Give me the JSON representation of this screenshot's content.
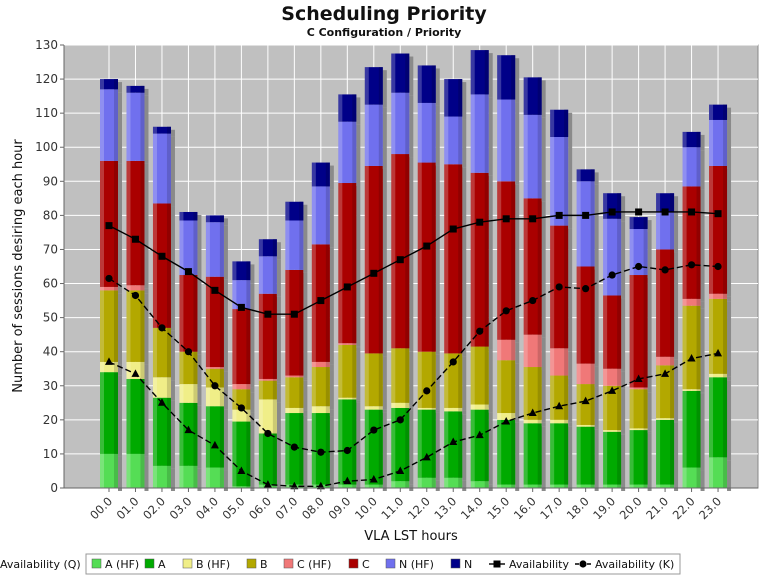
{
  "colors": {
    "plot_bg": "#c0c0c0",
    "grid": "#ffffff",
    "series_colors": {
      "A (HF)": "#55dd55",
      "A": "#00aa00",
      "B (HF)": "#f0ee88",
      "B": "#b3a800",
      "C (HF)": "#f07878",
      "C": "#aa0000",
      "N (HF)": "#7070ee",
      "N": "#000088"
    },
    "line": "#000000"
  },
  "chart_data": {
    "type": "bar",
    "stacked": true,
    "title": "Scheduling Priority",
    "subtitle": "C Configuration /  Priority",
    "xlabel": "VLA LST hours",
    "ylabel": "Number of sessions desiring each hour",
    "ylim": [
      0,
      130
    ],
    "yticks": [
      0,
      10,
      20,
      30,
      40,
      50,
      60,
      70,
      80,
      90,
      100,
      110,
      120,
      130
    ],
    "grid": true,
    "legend_position": "bottom",
    "categories": [
      "00.0",
      "01.0",
      "02.0",
      "03.0",
      "04.0",
      "05.0",
      "06.0",
      "07.0",
      "08.0",
      "09.0",
      "10.0",
      "11.0",
      "12.0",
      "13.0",
      "14.0",
      "15.0",
      "16.0",
      "17.0",
      "18.0",
      "19.0",
      "20.0",
      "21.0",
      "22.0",
      "23.0"
    ],
    "series": [
      {
        "name": "A (HF)",
        "kind": "bar",
        "values": [
          10,
          10,
          6.5,
          6.5,
          6,
          0.5,
          1,
          1,
          1,
          1,
          1,
          2,
          3,
          3,
          2,
          1,
          1,
          1,
          1,
          1,
          1,
          1,
          6,
          9
        ]
      },
      {
        "name": "A",
        "kind": "bar",
        "values": [
          24,
          22,
          20,
          18.5,
          18,
          19,
          15,
          21,
          21,
          25,
          22,
          21.5,
          20,
          19.5,
          21,
          19,
          18,
          18,
          17,
          15.5,
          16,
          19,
          22.5,
          23.5
        ]
      },
      {
        "name": "B (HF)",
        "kind": "bar",
        "values": [
          3,
          5,
          6,
          5.5,
          5.5,
          3.5,
          10,
          1.5,
          2,
          0.5,
          1,
          1.5,
          0.5,
          1,
          1.5,
          2,
          1,
          1,
          0.5,
          0.5,
          0.5,
          0.5,
          0.5,
          1
        ]
      },
      {
        "name": "B",
        "kind": "bar",
        "values": [
          21,
          21,
          14.5,
          9.5,
          5.5,
          6,
          5.5,
          9,
          11.5,
          15.5,
          15.5,
          16,
          16.5,
          16,
          17,
          15.5,
          15.5,
          13,
          12,
          13,
          11.5,
          15.5,
          24.5,
          22
        ]
      },
      {
        "name": "C (HF)",
        "kind": "bar",
        "values": [
          1,
          1.5,
          0,
          0,
          0.5,
          1.5,
          0.5,
          0.5,
          1.5,
          0.5,
          0,
          0,
          0,
          0,
          0,
          6,
          9.5,
          8,
          6,
          5,
          0.5,
          2.5,
          2,
          1.5
        ]
      },
      {
        "name": "C",
        "kind": "bar",
        "values": [
          37,
          36.5,
          36.5,
          22.5,
          26.5,
          22,
          25,
          31,
          34.5,
          47,
          55,
          57,
          55.5,
          55.5,
          51,
          46.5,
          40,
          36,
          28.5,
          21.5,
          33,
          31.5,
          33,
          37.5
        ]
      },
      {
        "name": "N (HF)",
        "kind": "bar",
        "values": [
          21,
          20,
          20.5,
          16,
          16,
          8.5,
          11,
          14.5,
          17,
          18,
          18,
          18,
          17.5,
          14,
          23,
          24,
          24.5,
          26,
          25,
          22.5,
          13.5,
          11,
          11.5,
          13.5
        ]
      },
      {
        "name": "N",
        "kind": "bar",
        "values": [
          3,
          2,
          2,
          2.5,
          2,
          5.5,
          5,
          5.5,
          7,
          8,
          11,
          11.5,
          11,
          11,
          13,
          13,
          11,
          8,
          3.5,
          7.5,
          3.5,
          5.5,
          4.5,
          4.5
        ]
      },
      {
        "name": "Availability",
        "kind": "line",
        "style": "solid",
        "marker": "square",
        "values": [
          77,
          73,
          68,
          63.5,
          58,
          53,
          51,
          51,
          55,
          59,
          63,
          67,
          71,
          76,
          78,
          79,
          79,
          80,
          80,
          81,
          81,
          81,
          81,
          80.5
        ]
      },
      {
        "name": "Availability (K)",
        "kind": "line",
        "style": "dashed",
        "marker": "circle",
        "values": [
          61.5,
          56.5,
          47,
          40,
          30,
          23.5,
          16,
          12,
          10.5,
          11,
          17,
          20,
          28.5,
          37,
          46,
          52,
          55,
          59,
          58.5,
          62.5,
          65,
          64,
          65.5,
          65
        ]
      },
      {
        "name": "Availability (Q)",
        "kind": "line",
        "style": "dashed",
        "marker": "triangle",
        "values": [
          37,
          33.5,
          25,
          17,
          12.5,
          5,
          1,
          0.5,
          0.5,
          2,
          2.5,
          5,
          9,
          13.5,
          15.5,
          19.5,
          22,
          24,
          25.5,
          28.5,
          32,
          33.5,
          38,
          39.5
        ]
      }
    ]
  }
}
